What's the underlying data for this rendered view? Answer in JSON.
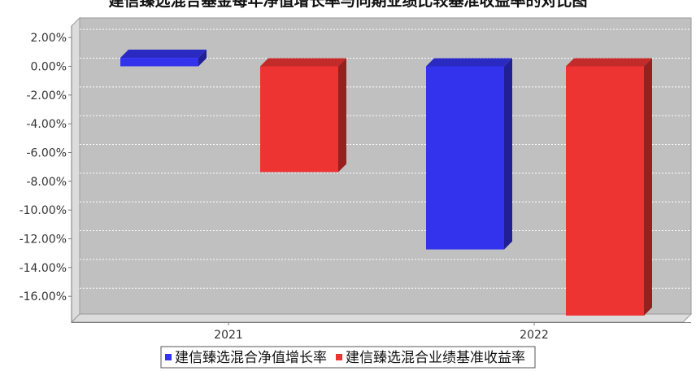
{
  "chart_data": {
    "type": "bar",
    "title": "建信臻选混合基金每年净值增长率与同期业绩比较基准收益率的对比图",
    "categories": [
      "2021",
      "2022"
    ],
    "series": [
      {
        "name": "建信臻选混合净值增长率",
        "values": [
          0.59,
          -12.74
        ],
        "color": "#3333ee"
      },
      {
        "name": "建信臻选混合业绩基准收益率",
        "values": [
          -7.36,
          -17.34
        ],
        "color": "#ee3333"
      }
    ],
    "ylim": [
      -17.8,
      2.8
    ],
    "yticks": [
      2,
      0,
      -2,
      -4,
      -6,
      -8,
      -10,
      -12,
      -14,
      -16
    ],
    "ytick_labels": [
      "2.00%",
      "0.00%",
      "-2.00%",
      "-4.00%",
      "-6.00%",
      "-8.00%",
      "-10.00%",
      "-12.00%",
      "-14.00%",
      "-16.00%"
    ],
    "xlabel": "",
    "ylabel": "",
    "grid": true,
    "legend_position": "bottom"
  }
}
